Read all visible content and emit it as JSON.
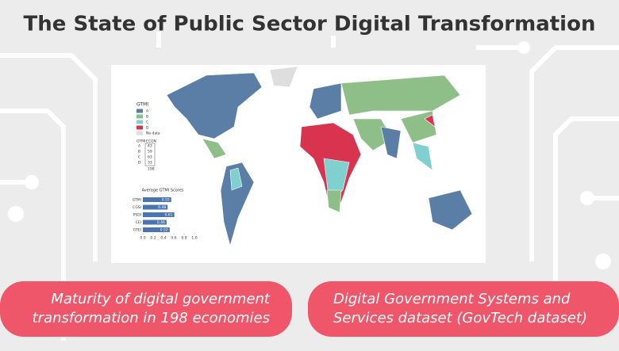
{
  "title": "The State of Public Sector Digital Transformation",
  "pills": [
    "Maturity of digital government\ntransformation in 198 economies",
    "Digital Government Systems and\nServices dataset (GovTech dataset)"
  ],
  "map": {
    "legend": {
      "title": "GTMI",
      "items": [
        {
          "label": "A",
          "color": "#5a7ea6"
        },
        {
          "label": "B",
          "color": "#8fbf88"
        },
        {
          "label": "C",
          "color": "#7fd0cf"
        },
        {
          "label": "D",
          "color": "#d8334f"
        },
        {
          "label": "No data",
          "color": "#dedede"
        }
      ]
    },
    "econ_table": {
      "header": [
        "GTMI",
        "ECON"
      ],
      "rows": [
        [
          "A",
          43
        ],
        [
          "B",
          59
        ],
        [
          "C",
          63
        ],
        [
          "D",
          33
        ]
      ],
      "total": 198
    },
    "scores": {
      "type": "bar",
      "title": "Average GTMI Scores",
      "orientation": "horizontal",
      "color": "#4a74b0",
      "categories": [
        "GTMI",
        "CGSI",
        "PSDI",
        "CEI",
        "GTEI"
      ],
      "values": [
        0.55,
        0.48,
        0.61,
        0.46,
        0.52
      ],
      "xlim": [
        0,
        1
      ],
      "xticks": [
        {
          "value": 0,
          "label": "0.0"
        },
        0.2,
        0.4,
        0.6,
        0.8,
        {
          "value": 1,
          "label": "1.0"
        }
      ]
    }
  }
}
